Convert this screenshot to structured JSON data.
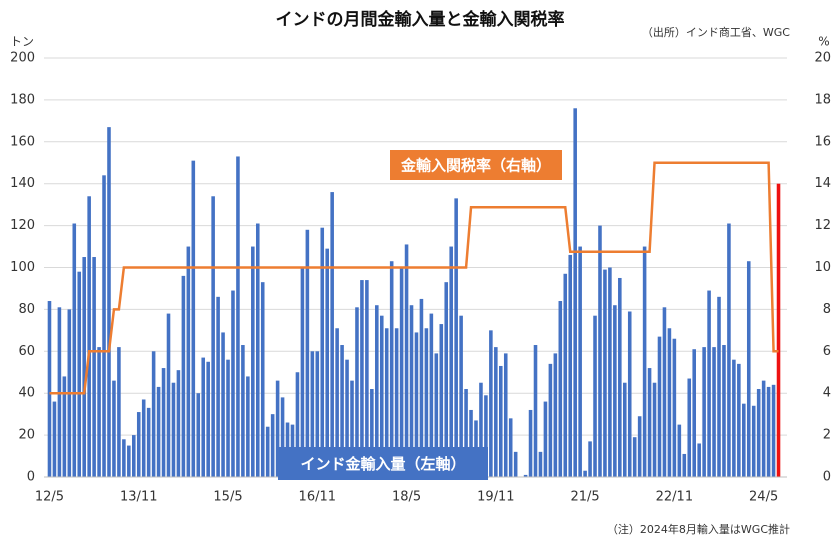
{
  "chart_data": {
    "type": "bar",
    "title": "インドの月間金輸入量と金輸入関税率",
    "source": "（出所）インド商工省、WGC",
    "note": "（注）2024年8月輸入量はWGC推計",
    "y_unit": "トン",
    "y2_unit": "%",
    "categories": [
      "12/5",
      null,
      null,
      null,
      null,
      null,
      null,
      null,
      null,
      null,
      null,
      null,
      null,
      null,
      null,
      null,
      null,
      null,
      "13/11",
      null,
      null,
      null,
      null,
      null,
      null,
      null,
      null,
      null,
      null,
      null,
      null,
      null,
      null,
      null,
      null,
      null,
      "15/5",
      null,
      null,
      null,
      null,
      null,
      null,
      null,
      null,
      null,
      null,
      null,
      null,
      null,
      null,
      null,
      null,
      null,
      "16/11",
      null,
      null,
      null,
      null,
      null,
      null,
      null,
      null,
      null,
      null,
      null,
      null,
      null,
      null,
      null,
      null,
      null,
      "18/5",
      null,
      null,
      null,
      null,
      null,
      null,
      null,
      null,
      null,
      null,
      null,
      null,
      null,
      null,
      null,
      null,
      null,
      "19/11",
      null,
      null,
      null,
      null,
      null,
      null,
      null,
      null,
      null,
      null,
      null,
      null,
      null,
      null,
      null,
      null,
      null,
      "21/5",
      null,
      null,
      null,
      null,
      null,
      null,
      null,
      null,
      null,
      null,
      null,
      null,
      null,
      null,
      null,
      null,
      null,
      "22/11",
      null,
      null,
      null,
      null,
      null,
      null,
      null,
      null,
      null,
      null,
      null,
      null,
      null,
      null,
      null,
      null,
      null,
      "24/5",
      null,
      null,
      null
    ],
    "series": [
      {
        "name": "インド金輸入量（左軸）",
        "color": "#4472c4",
        "last_color": "#ee1111",
        "values": [
          84,
          36,
          81,
          48,
          80,
          121,
          98,
          105,
          134,
          105,
          62,
          144,
          167,
          46,
          62,
          18,
          15,
          20,
          31,
          37,
          33,
          60,
          43,
          52,
          78,
          45,
          51,
          96,
          110,
          151,
          40,
          57,
          55,
          134,
          86,
          69,
          56,
          89,
          153,
          63,
          48,
          110,
          121,
          93,
          24,
          30,
          46,
          38,
          26,
          25,
          50,
          100,
          118,
          60,
          60,
          119,
          109,
          136,
          71,
          63,
          56,
          46,
          81,
          94,
          94,
          42,
          82,
          77,
          71,
          103,
          71,
          100,
          111,
          82,
          69,
          85,
          71,
          78,
          59,
          73,
          93,
          110,
          133,
          77,
          42,
          32,
          27,
          45,
          39,
          70,
          62,
          53,
          59,
          28,
          12,
          0,
          1,
          32,
          63,
          12,
          36,
          54,
          59,
          84,
          97,
          106,
          176,
          110,
          3,
          17,
          77,
          120,
          99,
          100,
          82,
          95,
          45,
          79,
          19,
          29,
          110,
          52,
          45,
          67,
          81,
          71,
          66,
          25,
          11,
          47,
          61,
          16,
          62,
          89,
          62,
          86,
          63,
          121,
          56,
          54,
          35,
          103,
          34,
          42,
          46,
          43,
          44,
          140
        ]
      },
      {
        "name": "金輸入関税率（右軸）",
        "type": "line",
        "axis": "y2",
        "color": "#ed7d31",
        "values": [
          4,
          4,
          4,
          4,
          4,
          4,
          4,
          4,
          6,
          6,
          6,
          6,
          6,
          8,
          8,
          10,
          10,
          10,
          10,
          10,
          10,
          10,
          10,
          10,
          10,
          10,
          10,
          10,
          10,
          10,
          10,
          10,
          10,
          10,
          10,
          10,
          10,
          10,
          10,
          10,
          10,
          10,
          10,
          10,
          10,
          10,
          10,
          10,
          10,
          10,
          10,
          10,
          10,
          10,
          10,
          10,
          10,
          10,
          10,
          10,
          10,
          10,
          10,
          10,
          10,
          10,
          10,
          10,
          10,
          10,
          10,
          10,
          10,
          10,
          10,
          10,
          10,
          10,
          10,
          10,
          10,
          10,
          10,
          10,
          10,
          12.875,
          12.875,
          12.875,
          12.875,
          12.875,
          12.875,
          12.875,
          12.875,
          12.875,
          12.875,
          12.875,
          12.875,
          12.875,
          12.875,
          12.875,
          12.875,
          12.875,
          12.875,
          12.875,
          12.875,
          10.75,
          10.75,
          10.75,
          10.75,
          10.75,
          10.75,
          10.75,
          10.75,
          10.75,
          10.75,
          10.75,
          10.75,
          10.75,
          10.75,
          10.75,
          10.75,
          10.75,
          15,
          15,
          15,
          15,
          15,
          15,
          15,
          15,
          15,
          15,
          15,
          15,
          15,
          15,
          15,
          15,
          15,
          15,
          15,
          15,
          15,
          15,
          15,
          15,
          6,
          6
        ]
      }
    ],
    "ylim": [
      0,
      200
    ],
    "yticks": [
      0,
      20,
      40,
      60,
      80,
      100,
      120,
      140,
      160,
      180,
      200
    ],
    "y2lim": [
      0,
      20
    ],
    "y2ticks": [
      0,
      2,
      4,
      6,
      8,
      10,
      12,
      14,
      16,
      18,
      20
    ],
    "grid": true
  }
}
